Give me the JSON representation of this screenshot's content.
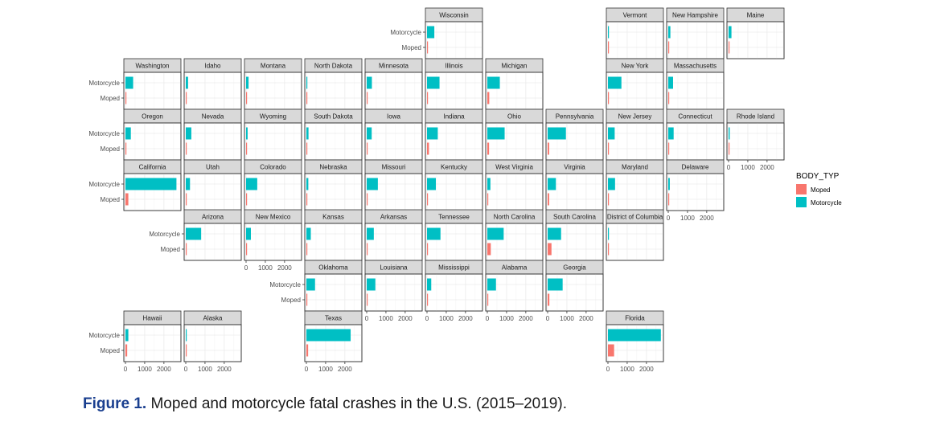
{
  "caption": {
    "label": "Figure 1.",
    "text": " Moped and motorcycle fatal crashes in the U.S. (2015–2019)."
  },
  "chart_data": {
    "type": "bar",
    "orientation": "horizontal",
    "categories": [
      "Motorcycle",
      "Moped"
    ],
    "x_ticks": [
      "0",
      "1000",
      "2000"
    ],
    "xlim": [
      0,
      2800
    ],
    "grid": true,
    "legend": {
      "title": "BODY_TYP",
      "position": "right",
      "entries": [
        {
          "label": "Moped",
          "color": "#F8766D"
        },
        {
          "label": "Motorcycle",
          "color": "#00BFC4"
        }
      ]
    },
    "facets": [
      {
        "state": "Wisconsin",
        "motorcycle": 380,
        "moped": 30
      },
      {
        "state": "Vermont",
        "motorcycle": 40,
        "moped": 0
      },
      {
        "state": "New Hampshire",
        "motorcycle": 110,
        "moped": 0
      },
      {
        "state": "Maine",
        "motorcycle": 150,
        "moped": 10
      },
      {
        "state": "Washington",
        "motorcycle": 400,
        "moped": 30
      },
      {
        "state": "Idaho",
        "motorcycle": 120,
        "moped": 5
      },
      {
        "state": "Montana",
        "motorcycle": 130,
        "moped": 5
      },
      {
        "state": "North Dakota",
        "motorcycle": 50,
        "moped": 5
      },
      {
        "state": "Minnesota",
        "motorcycle": 270,
        "moped": 15
      },
      {
        "state": "Illinois",
        "motorcycle": 650,
        "moped": 40
      },
      {
        "state": "Michigan",
        "motorcycle": 650,
        "moped": 100
      },
      {
        "state": "New York",
        "motorcycle": 700,
        "moped": 50
      },
      {
        "state": "Massachusetts",
        "motorcycle": 250,
        "moped": 15
      },
      {
        "state": "Oregon",
        "motorcycle": 280,
        "moped": 20
      },
      {
        "state": "Nevada",
        "motorcycle": 290,
        "moped": 20
      },
      {
        "state": "Wyoming",
        "motorcycle": 80,
        "moped": 5
      },
      {
        "state": "South Dakota",
        "motorcycle": 110,
        "moped": 5
      },
      {
        "state": "Iowa",
        "motorcycle": 260,
        "moped": 15
      },
      {
        "state": "Indiana",
        "motorcycle": 560,
        "moped": 100
      },
      {
        "state": "Ohio",
        "motorcycle": 900,
        "moped": 90
      },
      {
        "state": "Pennsylvania",
        "motorcycle": 950,
        "moped": 80
      },
      {
        "state": "New Jersey",
        "motorcycle": 350,
        "moped": 30
      },
      {
        "state": "Connecticut",
        "motorcycle": 280,
        "moped": 40
      },
      {
        "state": "Rhode Island",
        "motorcycle": 60,
        "moped": 5
      },
      {
        "state": "California",
        "motorcycle": 2650,
        "moped": 150
      },
      {
        "state": "Utah",
        "motorcycle": 220,
        "moped": 10
      },
      {
        "state": "Colorado",
        "motorcycle": 580,
        "moped": 30
      },
      {
        "state": "Nebraska",
        "motorcycle": 100,
        "moped": 10
      },
      {
        "state": "Missouri",
        "motorcycle": 580,
        "moped": 40
      },
      {
        "state": "Kentucky",
        "motorcycle": 460,
        "moped": 30
      },
      {
        "state": "West Virginia",
        "motorcycle": 160,
        "moped": 10
      },
      {
        "state": "Virginia",
        "motorcycle": 430,
        "moped": 80
      },
      {
        "state": "Maryland",
        "motorcycle": 370,
        "moped": 30
      },
      {
        "state": "Delaware",
        "motorcycle": 80,
        "moped": 10
      },
      {
        "state": "Arizona",
        "motorcycle": 800,
        "moped": 30
      },
      {
        "state": "New Mexico",
        "motorcycle": 250,
        "moped": 10
      },
      {
        "state": "Kansas",
        "motorcycle": 230,
        "moped": 10
      },
      {
        "state": "Arkansas",
        "motorcycle": 370,
        "moped": 10
      },
      {
        "state": "Tennessee",
        "motorcycle": 700,
        "moped": 30
      },
      {
        "state": "North Carolina",
        "motorcycle": 850,
        "moped": 180
      },
      {
        "state": "South Carolina",
        "motorcycle": 700,
        "moped": 200
      },
      {
        "state": "District of Columbia",
        "motorcycle": 10,
        "moped": 5
      },
      {
        "state": "Oklahoma",
        "motorcycle": 450,
        "moped": 10
      },
      {
        "state": "Louisiana",
        "motorcycle": 450,
        "moped": 30
      },
      {
        "state": "Mississippi",
        "motorcycle": 220,
        "moped": 15
      },
      {
        "state": "Alabama",
        "motorcycle": 450,
        "moped": 20
      },
      {
        "state": "Georgia",
        "motorcycle": 780,
        "moped": 90
      },
      {
        "state": "Hawaii",
        "motorcycle": 150,
        "moped": 90
      },
      {
        "state": "Alaska",
        "motorcycle": 40,
        "moped": 5
      },
      {
        "state": "Texas",
        "motorcycle": 2300,
        "moped": 90
      },
      {
        "state": "Florida",
        "motorcycle": 2750,
        "moped": 320
      }
    ]
  }
}
